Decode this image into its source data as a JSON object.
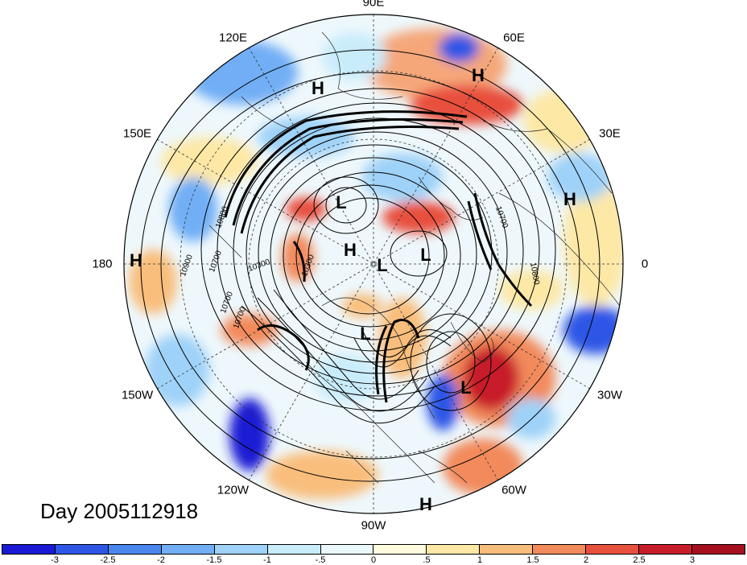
{
  "title": "Day 2005112918",
  "longitude_labels": [
    {
      "text": "90E",
      "angle": -90
    },
    {
      "text": "60E",
      "angle": -60
    },
    {
      "text": "30E",
      "angle": -30
    },
    {
      "text": "0",
      "angle": 0
    },
    {
      "text": "30W",
      "angle": 30
    },
    {
      "text": "60W",
      "angle": 60
    },
    {
      "text": "90W",
      "angle": 90
    },
    {
      "text": "120W",
      "angle": 120
    },
    {
      "text": "150W",
      "angle": 150
    },
    {
      "text": "180",
      "angle": 180
    },
    {
      "text": "150E",
      "angle": 210
    },
    {
      "text": "120E",
      "angle": 240
    }
  ],
  "pressure_centers": [
    {
      "type": "H",
      "near": "60E"
    },
    {
      "type": "H",
      "near": "120E"
    },
    {
      "type": "H",
      "near": "30E"
    },
    {
      "type": "H",
      "near": "180"
    },
    {
      "type": "H",
      "near": "90W"
    },
    {
      "type": "L",
      "near": "North Pole, Siberian side"
    },
    {
      "type": "L",
      "near": "Polar center"
    },
    {
      "type": "L",
      "near": "Scandinavia"
    },
    {
      "type": "L",
      "near": "Hudson Bay"
    },
    {
      "type": "L",
      "near": "North Atlantic"
    },
    {
      "type": "H",
      "near": "Arctic Ocean"
    }
  ],
  "contour_labels": [
    "10900",
    "10700",
    "10300",
    "10800",
    "10700",
    "10700",
    "10800",
    "10700",
    "10300"
  ],
  "colorbar": {
    "ticks": [
      "-3",
      "-2.5",
      "-2",
      "-1.5",
      "-1",
      "-.5",
      "0",
      ".5",
      "1",
      "1.5",
      "2",
      "2.5",
      "3"
    ],
    "colors": [
      "#1a1ad4",
      "#2e57e6",
      "#4a86ee",
      "#71aef5",
      "#9fd2f8",
      "#c9ecfb",
      "#eaf8fd",
      "#fffbdd",
      "#fde8a6",
      "#f9be7c",
      "#f28a5b",
      "#e8503e",
      "#c81d2a",
      "#a50f1f"
    ]
  }
}
